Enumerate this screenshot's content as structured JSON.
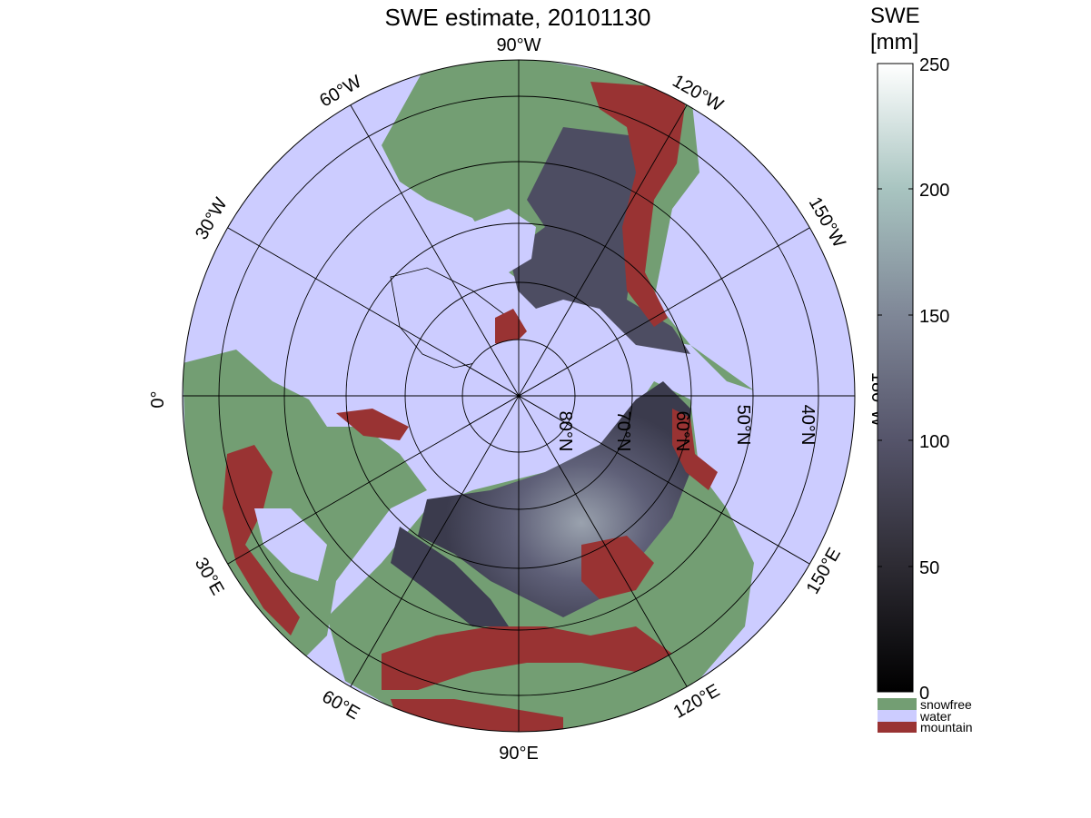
{
  "title": "SWE estimate, 20101130",
  "colorbar": {
    "title_line1": "SWE",
    "title_line2": "[mm]",
    "ticks": [
      "0",
      "50",
      "100",
      "150",
      "200",
      "250"
    ],
    "tick_values": [
      0,
      50,
      100,
      150,
      200,
      250
    ],
    "range": [
      0,
      250
    ],
    "gradient": [
      "#000000",
      "#2d2b33",
      "#55546a",
      "#7f8797",
      "#a8c4c0",
      "#ffffff"
    ],
    "categories": [
      {
        "label": "snowfree",
        "color": "#739e73"
      },
      {
        "label": "water",
        "color": "#ccccff"
      },
      {
        "label": "mountain",
        "color": "#993333"
      }
    ]
  },
  "map": {
    "projection": "polar stereographic (north)",
    "longitude_labels": [
      "90°W",
      "120°W",
      "150°W",
      "180°W",
      "150°E",
      "120°E",
      "90°E",
      "60°E",
      "30°E",
      "0°",
      "30°W",
      "60°W"
    ],
    "latitude_labels": [
      "80°N",
      "70°N",
      "60°N",
      "50°N",
      "40°N"
    ],
    "colors": {
      "water": "#ccccff",
      "snowfree": "#739e73",
      "mountain": "#993333",
      "snow_low": "#3a3a4a",
      "snow_mid": "#5d5d78",
      "snow_high": "#8a92a0"
    }
  }
}
